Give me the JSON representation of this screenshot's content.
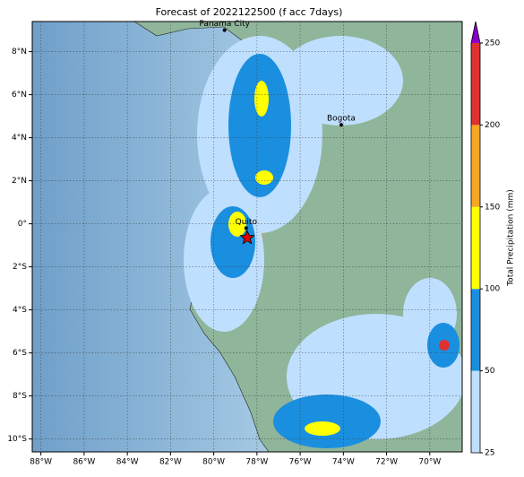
{
  "chart_data": {
    "type": "map",
    "title": "Forecast of 2022122500 (f acc 7days)",
    "xlim": [
      -88.4,
      -68.5
    ],
    "ylim": [
      -10.6,
      9.4
    ],
    "xticks": [
      {
        "value": -88,
        "label": "88°W"
      },
      {
        "value": -86,
        "label": "86°W"
      },
      {
        "value": -84,
        "label": "84°W"
      },
      {
        "value": -82,
        "label": "82°W"
      },
      {
        "value": -80,
        "label": "80°W"
      },
      {
        "value": -78,
        "label": "78°W"
      },
      {
        "value": -76,
        "label": "76°W"
      },
      {
        "value": -74,
        "label": "74°W"
      },
      {
        "value": -72,
        "label": "72°W"
      },
      {
        "value": -70,
        "label": "70°W"
      }
    ],
    "yticks": [
      {
        "value": 8,
        "label": "8°N"
      },
      {
        "value": 6,
        "label": "6°N"
      },
      {
        "value": 4,
        "label": "4°N"
      },
      {
        "value": 2,
        "label": "2°N"
      },
      {
        "value": 0,
        "label": "0°"
      },
      {
        "value": -2,
        "label": "2°S"
      },
      {
        "value": -4,
        "label": "4°S"
      },
      {
        "value": -6,
        "label": "6°S"
      },
      {
        "value": -8,
        "label": "8°S"
      },
      {
        "value": -10,
        "label": "10°S"
      }
    ],
    "grid": true,
    "cities": [
      {
        "name": "Panama City",
        "lon": -79.5,
        "lat": 9.0
      },
      {
        "name": "Bogota",
        "lon": -74.1,
        "lat": 4.6
      },
      {
        "name": "Quito",
        "lon": -78.5,
        "lat": -0.2
      }
    ],
    "marker": {
      "lon": -78.45,
      "lat": -0.65,
      "color": "#e00000"
    },
    "colorbar": {
      "label": "Total Precipitation (mm)",
      "ticks": [
        25,
        50,
        100,
        150,
        200,
        250
      ],
      "colors": [
        "#bfdfff",
        "#1b8fdf",
        "#ffff00",
        "#f5a623",
        "#e03030"
      ],
      "extend_color": "#8a00c8"
    }
  }
}
